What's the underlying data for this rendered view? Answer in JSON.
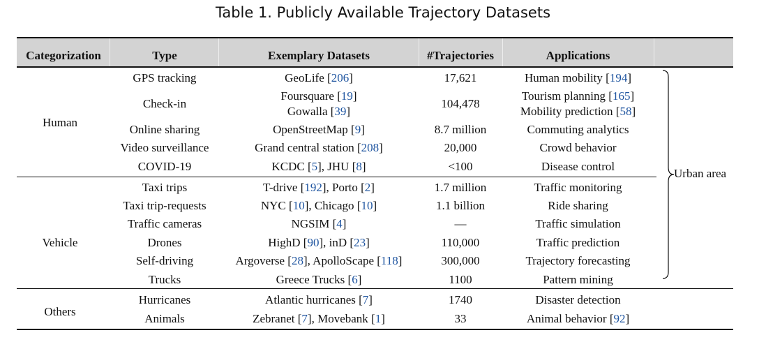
{
  "caption": "Table 1.  Publicly Available Trajectory Datasets",
  "headers": [
    "Categorization",
    "Type",
    "Exemplary Datasets",
    "#Trajectories",
    "Applications"
  ],
  "colors": {
    "header_bg": "#d3d3d3",
    "reference": "#1f55a0",
    "text": "#111111"
  },
  "groups": [
    {
      "name": "Human"
    },
    {
      "name": "Vehicle"
    },
    {
      "name": "Others"
    }
  ],
  "rows": [
    {
      "type": "GPS tracking",
      "datasets": [
        [
          "GeoLife ",
          "[",
          "206",
          "]"
        ]
      ],
      "trajectories": "17,621",
      "applications": [
        [
          "Human mobility ",
          "[",
          "194",
          "]"
        ]
      ]
    },
    {
      "type": "Check-in",
      "datasets": [
        [
          "Foursquare ",
          "[",
          "19",
          "]"
        ],
        [
          "Gowalla ",
          "[",
          "39",
          "]"
        ]
      ],
      "trajectories": "104,478",
      "applications": [
        [
          "Tourism planning ",
          "[",
          "165",
          "]"
        ],
        [
          "Mobility prediction ",
          "[",
          "58",
          "]"
        ]
      ]
    },
    {
      "type": "Online sharing",
      "datasets": [
        [
          "OpenStreetMap ",
          "[",
          "9",
          "]"
        ]
      ],
      "trajectories": "8.7 million",
      "applications": [
        [
          "Commuting analytics"
        ]
      ]
    },
    {
      "type": "Video surveillance",
      "datasets": [
        [
          "Grand central station ",
          "[",
          "208",
          "]"
        ]
      ],
      "trajectories": "20,000",
      "applications": [
        [
          "Crowd behavior"
        ]
      ]
    },
    {
      "type": "COVID-19",
      "datasets": [
        [
          "KCDC ",
          "[",
          "5",
          "]",
          ", JHU ",
          "[",
          "8",
          "]"
        ]
      ],
      "trajectories": "<100",
      "applications": [
        [
          "Disease control"
        ]
      ]
    },
    {
      "type": "Taxi trips",
      "datasets": [
        [
          "T-drive ",
          "[",
          "192",
          "]",
          ", Porto ",
          "[",
          "2",
          "]"
        ]
      ],
      "trajectories": "1.7 million",
      "applications": [
        [
          "Traffic monitoring"
        ]
      ]
    },
    {
      "type": "Taxi trip-requests",
      "datasets": [
        [
          "NYC ",
          "[",
          "10",
          "]",
          ", Chicago ",
          "[",
          "10",
          "]"
        ]
      ],
      "trajectories": "1.1 billion",
      "applications": [
        [
          "Ride sharing"
        ]
      ]
    },
    {
      "type": "Traffic cameras",
      "datasets": [
        [
          "NGSIM ",
          "[",
          "4",
          "]"
        ]
      ],
      "trajectories": "—",
      "applications": [
        [
          "Traffic simulation"
        ]
      ]
    },
    {
      "type": "Drones",
      "datasets": [
        [
          "HighD ",
          "[",
          "90",
          "]",
          ", inD ",
          "[",
          "23",
          "]"
        ]
      ],
      "trajectories": "110,000",
      "applications": [
        [
          "Traffic prediction"
        ]
      ]
    },
    {
      "type": "Self-driving",
      "datasets": [
        [
          "Argoverse ",
          "[",
          "28",
          "]",
          ", ApolloScape ",
          "[",
          "118",
          "]"
        ]
      ],
      "trajectories": "300,000",
      "applications": [
        [
          "Trajectory forecasting"
        ]
      ]
    },
    {
      "type": "Trucks",
      "datasets": [
        [
          "Greece Trucks ",
          "[",
          "6",
          "]"
        ]
      ],
      "trajectories": "1100",
      "applications": [
        [
          "Pattern mining"
        ]
      ]
    },
    {
      "type": "Hurricanes",
      "datasets": [
        [
          "Atlantic hurricanes ",
          "[",
          "7",
          "]"
        ]
      ],
      "trajectories": "1740",
      "applications": [
        [
          "Disaster detection"
        ]
      ]
    },
    {
      "type": "Animals",
      "datasets": [
        [
          "Zebranet ",
          "[",
          "7",
          "]",
          ", Movebank ",
          "[",
          "1",
          "]"
        ]
      ],
      "trajectories": "33",
      "applications": [
        [
          "Animal behavior ",
          "[",
          "92",
          "]"
        ]
      ]
    }
  ],
  "brace_label": "Urban area"
}
